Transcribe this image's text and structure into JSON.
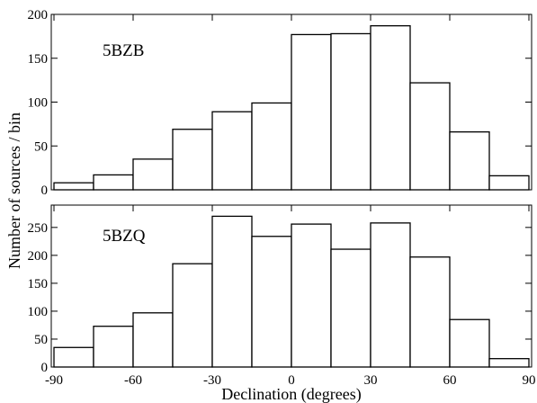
{
  "chart_data": {
    "type": "bar",
    "kind": "stacked histogram panels",
    "xlabel": "Declination (degrees)",
    "ylabel": "Number of sources / bin",
    "xlim": [
      -90,
      90
    ],
    "bin_width": 15,
    "bin_edges": [
      -90,
      -75,
      -60,
      -45,
      -30,
      -15,
      0,
      15,
      30,
      45,
      60,
      75,
      90
    ],
    "x_ticks": [
      -90,
      -60,
      -30,
      0,
      30,
      60,
      90
    ],
    "panels": [
      {
        "label": "5BZB",
        "ylim": [
          0,
          200
        ],
        "y_ticks": [
          0,
          50,
          100,
          150,
          200
        ],
        "values": [
          8,
          17,
          35,
          69,
          89,
          99,
          177,
          178,
          187,
          122,
          66,
          16
        ]
      },
      {
        "label": "5BZQ",
        "ylim": [
          0,
          290
        ],
        "y_ticks": [
          0,
          50,
          100,
          150,
          200,
          250
        ],
        "values": [
          35,
          73,
          97,
          185,
          270,
          234,
          256,
          211,
          258,
          197,
          85,
          15
        ]
      }
    ]
  }
}
